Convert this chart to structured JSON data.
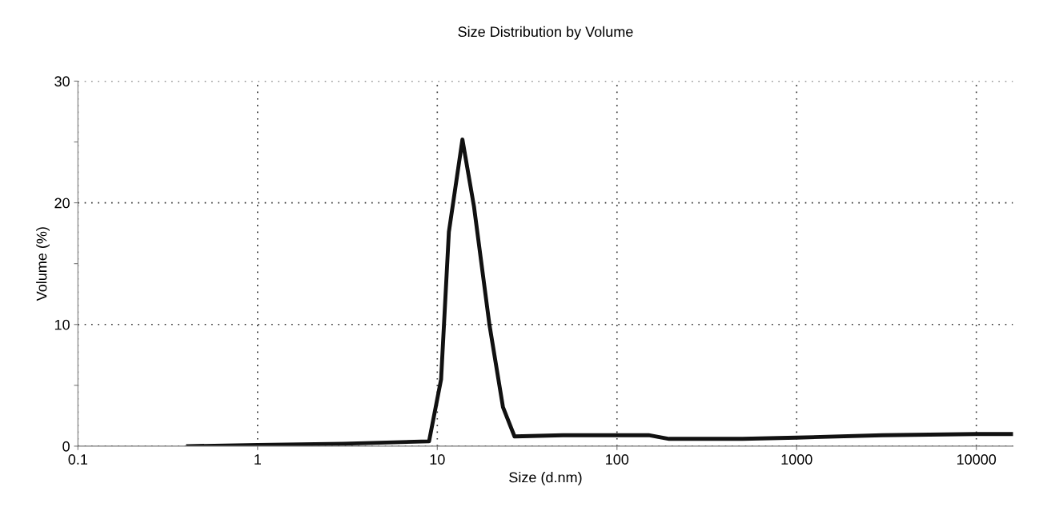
{
  "chart_data": {
    "type": "line",
    "title": "Size Distribution by Volume",
    "xlabel": "Size (d.nm)",
    "ylabel": "Volume (%)",
    "log": "x",
    "xlim": [
      0.1,
      16000
    ],
    "xticks": [
      0.1,
      1,
      10,
      100,
      1000,
      10000
    ],
    "ylim": [
      0,
      30
    ],
    "yticks": [
      0,
      {
        "value": 5,
        "label": null
      },
      10,
      {
        "value": 15,
        "label": null
      },
      20,
      {
        "value": 25,
        "label": null
      },
      30
    ],
    "grid": true,
    "marker": "none",
    "line_style": "solid",
    "series": [
      {
        "color": "#111111",
        "x": [
          0.41,
          1,
          3,
          9.0,
          10.5,
          11.6,
          13.8,
          16.0,
          19.5,
          23.2,
          26.9,
          50,
          100,
          150,
          195,
          500,
          1000,
          3000,
          10000,
          16000
        ],
        "values": [
          0,
          0.1,
          0.2,
          0.4,
          5.5,
          17.6,
          25.2,
          19.7,
          10,
          3.2,
          0.8,
          0.9,
          0.9,
          0.9,
          0.6,
          0.6,
          0.7,
          0.9,
          1.0,
          1.0
        ]
      }
    ]
  }
}
